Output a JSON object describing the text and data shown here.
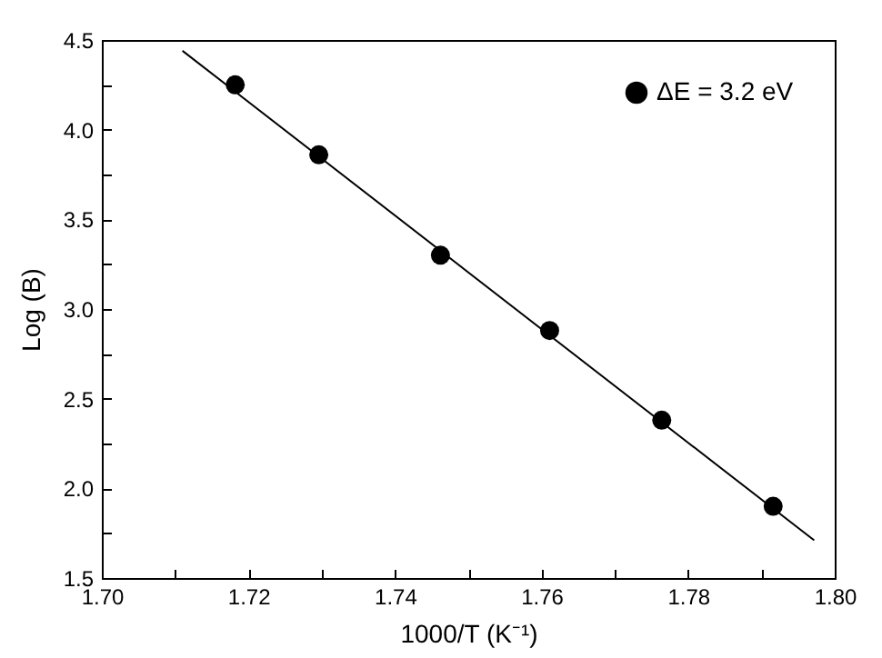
{
  "chart_data": {
    "type": "scatter",
    "xlabel": "1000/T (K⁻¹)",
    "ylabel": "Log (B)",
    "series": [
      {
        "name": "ΔE = 3.2 eV",
        "type": "scatter",
        "color": "#000000",
        "marker": "circle",
        "x": [
          1.7182,
          1.7296,
          1.7462,
          1.7611,
          1.7764,
          1.7916
        ],
        "values": [
          4.25,
          3.86,
          3.3,
          2.88,
          2.38,
          1.9
        ]
      },
      {
        "type": "line",
        "color": "#000000",
        "marker": "none",
        "line_style": "solid",
        "x": [
          1.711,
          1.7972
        ],
        "values": [
          4.44,
          1.71
        ]
      }
    ],
    "xlim": [
      1.7,
      1.8
    ],
    "xticks": [
      {
        "value": 1.7,
        "label": "1.70"
      },
      {
        "value": 1.71,
        "label": null
      },
      {
        "value": 1.72,
        "label": "1.72"
      },
      {
        "value": 1.73,
        "label": null
      },
      {
        "value": 1.74,
        "label": "1.74"
      },
      {
        "value": 1.75,
        "label": null
      },
      {
        "value": 1.76,
        "label": "1.76"
      },
      {
        "value": 1.77,
        "label": null
      },
      {
        "value": 1.78,
        "label": "1.78"
      },
      {
        "value": 1.79,
        "label": null
      },
      {
        "value": 1.8,
        "label": "1.80"
      }
    ],
    "ylim": [
      1.5,
      4.5
    ],
    "yticks": [
      {
        "value": 1.5,
        "label": "1.5"
      },
      {
        "value": 1.75,
        "label": null
      },
      {
        "value": 2.0,
        "label": "2.0"
      },
      {
        "value": 2.25,
        "label": null
      },
      {
        "value": 2.5,
        "label": "2.5"
      },
      {
        "value": 2.75,
        "label": null
      },
      {
        "value": 3.0,
        "label": "3.0"
      },
      {
        "value": 3.25,
        "label": null
      },
      {
        "value": 3.5,
        "label": "3.5"
      },
      {
        "value": 3.75,
        "label": null
      },
      {
        "value": 4.0,
        "label": "4.0"
      },
      {
        "value": 4.25,
        "label": null
      },
      {
        "value": 4.5,
        "label": "4.5"
      }
    ],
    "grid": false,
    "legend": "top right"
  }
}
